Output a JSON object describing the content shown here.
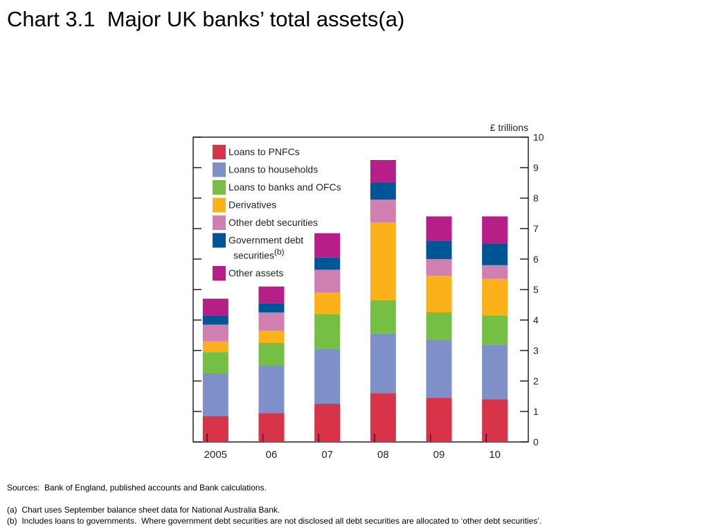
{
  "slide": {
    "title": "Chart 3.1  Major UK banks’ total assets(a)"
  },
  "chart_data": {
    "type": "bar",
    "stacked": true,
    "title": "",
    "xlabel": "",
    "ylabel": "£ trillions",
    "ylim": [
      0,
      10
    ],
    "yticks": [
      0,
      1,
      2,
      3,
      4,
      5,
      6,
      7,
      8,
      9,
      10
    ],
    "y_axis_side": "right",
    "legend_position": "top-left",
    "categories": [
      "2005",
      "06",
      "07",
      "08",
      "09",
      "10"
    ],
    "series": [
      {
        "name": "Loans to PNFCs",
        "color": "#d7344a",
        "values": [
          0.85,
          0.95,
          1.25,
          1.6,
          1.45,
          1.4
        ]
      },
      {
        "name": "Loans to households",
        "color": "#7f8fc8",
        "values": [
          1.4,
          1.55,
          1.8,
          1.95,
          1.9,
          1.8
        ]
      },
      {
        "name": "Loans to banks and OFCs",
        "color": "#74bf44",
        "values": [
          0.7,
          0.75,
          1.15,
          1.1,
          0.9,
          0.95
        ]
      },
      {
        "name": "Derivatives",
        "color": "#fbb11a",
        "values": [
          0.35,
          0.4,
          0.7,
          2.55,
          1.2,
          1.2
        ]
      },
      {
        "name": "Other debt securities",
        "color": "#cf80b0",
        "values": [
          0.55,
          0.6,
          0.75,
          0.75,
          0.55,
          0.45
        ]
      },
      {
        "name": "Government debt securities",
        "superscript": "(b)",
        "color": "#005594",
        "values": [
          0.3,
          0.3,
          0.4,
          0.55,
          0.6,
          0.7
        ]
      },
      {
        "name": "Other assets",
        "color": "#b61f87",
        "values": [
          0.55,
          0.55,
          0.8,
          0.75,
          0.8,
          0.9
        ]
      }
    ]
  },
  "notes": {
    "sources": "Sources:  Bank of England, published accounts and Bank calculations.",
    "note_a": "(a)  Chart uses September balance sheet data for National Australia Bank.",
    "note_b": "(b)  Includes loans to governments.  Where government debt securities are not disclosed all debt securities are allocated to ‘other debt securities’."
  }
}
